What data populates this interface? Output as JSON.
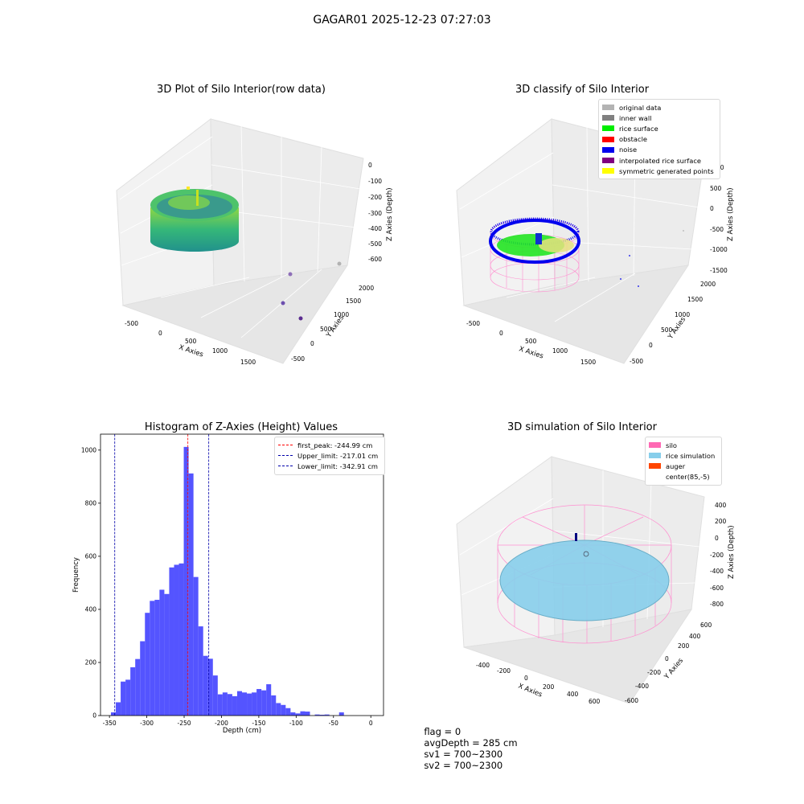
{
  "suptitle": "GAGAR01 2025-12-23 07:27:03",
  "status": {
    "flag": "flag = 0",
    "avg_depth": "avgDepth = 285 cm",
    "sv1": "sv1 = 700~2300",
    "sv2": "sv2 = 700~2300"
  },
  "chart_data": [
    {
      "type": "scatter",
      "title": "3D Plot of Silo Interior(row data)",
      "xlabel": "X Axies",
      "ylabel": "Y Axies",
      "zlabel": "Z Axies (Depth)",
      "x_ticks": [
        "-500",
        "0",
        "500",
        "1000",
        "1500"
      ],
      "y_ticks": [
        "-500",
        "0",
        "500",
        "1000",
        "1500",
        "2000"
      ],
      "z_ticks": [
        "0",
        "-100",
        "-200",
        "-300",
        "-400",
        "-500",
        "-600"
      ],
      "colormap": "viridis",
      "outlier_points": [
        {
          "x": 1700,
          "y": 2000,
          "z": -600,
          "color": "#b2b2b2"
        },
        {
          "x": 1500,
          "y": 1200,
          "z": -560,
          "color": "#8e6fb8"
        },
        {
          "x": 1400,
          "y": 800,
          "z": -540,
          "color": "#6d4fae"
        },
        {
          "x": 1600,
          "y": 200,
          "z": -560,
          "color": "#5b2c8f"
        }
      ]
    },
    {
      "type": "scatter",
      "title": "3D classify of Silo Interior",
      "xlabel": "X Axies",
      "ylabel": "Y Axies",
      "zlabel": "Z Axies (Depth)",
      "x_ticks": [
        "-500",
        "0",
        "500",
        "1000",
        "1500"
      ],
      "y_ticks": [
        "-500",
        "0",
        "500",
        "1000",
        "1500",
        "2000"
      ],
      "z_ticks": [
        "500",
        "0",
        "-500",
        "-1000",
        "-1500"
      ],
      "z_tick_partial": "00",
      "legend_position": "top-right",
      "legend": [
        {
          "label": "original data",
          "color": "#b3b3b3"
        },
        {
          "label": "inner wall",
          "color": "#808080"
        },
        {
          "label": "rice surface",
          "color": "#00ee00"
        },
        {
          "label": "obstacle",
          "color": "#ff0000"
        },
        {
          "label": "noise",
          "color": "#0000ee"
        },
        {
          "label": "interpolated rice surface",
          "color": "#800080"
        },
        {
          "label": "symmetric generated points",
          "color": "#ffff00"
        }
      ]
    },
    {
      "type": "bar",
      "title": "Histogram of Z-Axies (Height) Values",
      "xlabel": "Depth (cm)",
      "ylabel": "Frequency",
      "x_ticks": [
        "-350",
        "-300",
        "-250",
        "-200",
        "-150",
        "-100",
        "-50",
        "0"
      ],
      "y_ticks": [
        "0",
        "200",
        "400",
        "600",
        "800",
        "1000"
      ],
      "xlim": [
        -362,
        17
      ],
      "ylim": [
        0,
        1060
      ],
      "bin_start": -348,
      "bin_width": 6.5,
      "values": [
        12,
        50,
        128,
        135,
        182,
        213,
        280,
        387,
        432,
        436,
        474,
        458,
        558,
        568,
        573,
        1012,
        912,
        522,
        336,
        225,
        214,
        151,
        80,
        87,
        81,
        73,
        92,
        87,
        83,
        87,
        100,
        95,
        118,
        76,
        47,
        40,
        28,
        12,
        8,
        16,
        15,
        0,
        4,
        3,
        4,
        0,
        0,
        12
      ],
      "bar_color": "#4b4bff",
      "legend_position": "top-right",
      "reference_lines": [
        {
          "label": "first_peak: -244.99 cm",
          "x": -244.99,
          "color": "#ff0000"
        },
        {
          "label": "Upper_limit: -217.01 cm",
          "x": -217.01,
          "color": "#0000aa"
        },
        {
          "label": "Lower_limit: -342.91 cm",
          "x": -342.91,
          "color": "#0000aa"
        }
      ]
    },
    {
      "type": "scatter",
      "title": "3D simulation of Silo Interior",
      "xlabel": "X Axies",
      "ylabel": "Y Axies",
      "zlabel": "Z Axies (Depth)",
      "x_ticks": [
        "-400",
        "-200",
        "0",
        "200",
        "400",
        "600"
      ],
      "y_ticks": [
        "-600",
        "-400",
        "-200",
        "0",
        "200",
        "400",
        "600"
      ],
      "z_ticks": [
        "400",
        "200",
        "0",
        "-200",
        "-400",
        "-600",
        "-800"
      ],
      "legend_position": "top-right",
      "legend": [
        {
          "label": "silo",
          "color": "#ff69b4"
        },
        {
          "label": "rice simulation",
          "color": "#87ceeb"
        },
        {
          "label": "auger",
          "color": "#ff4500"
        },
        {
          "label": "center(85,-5)",
          "color": "#ffffff"
        }
      ]
    }
  ]
}
